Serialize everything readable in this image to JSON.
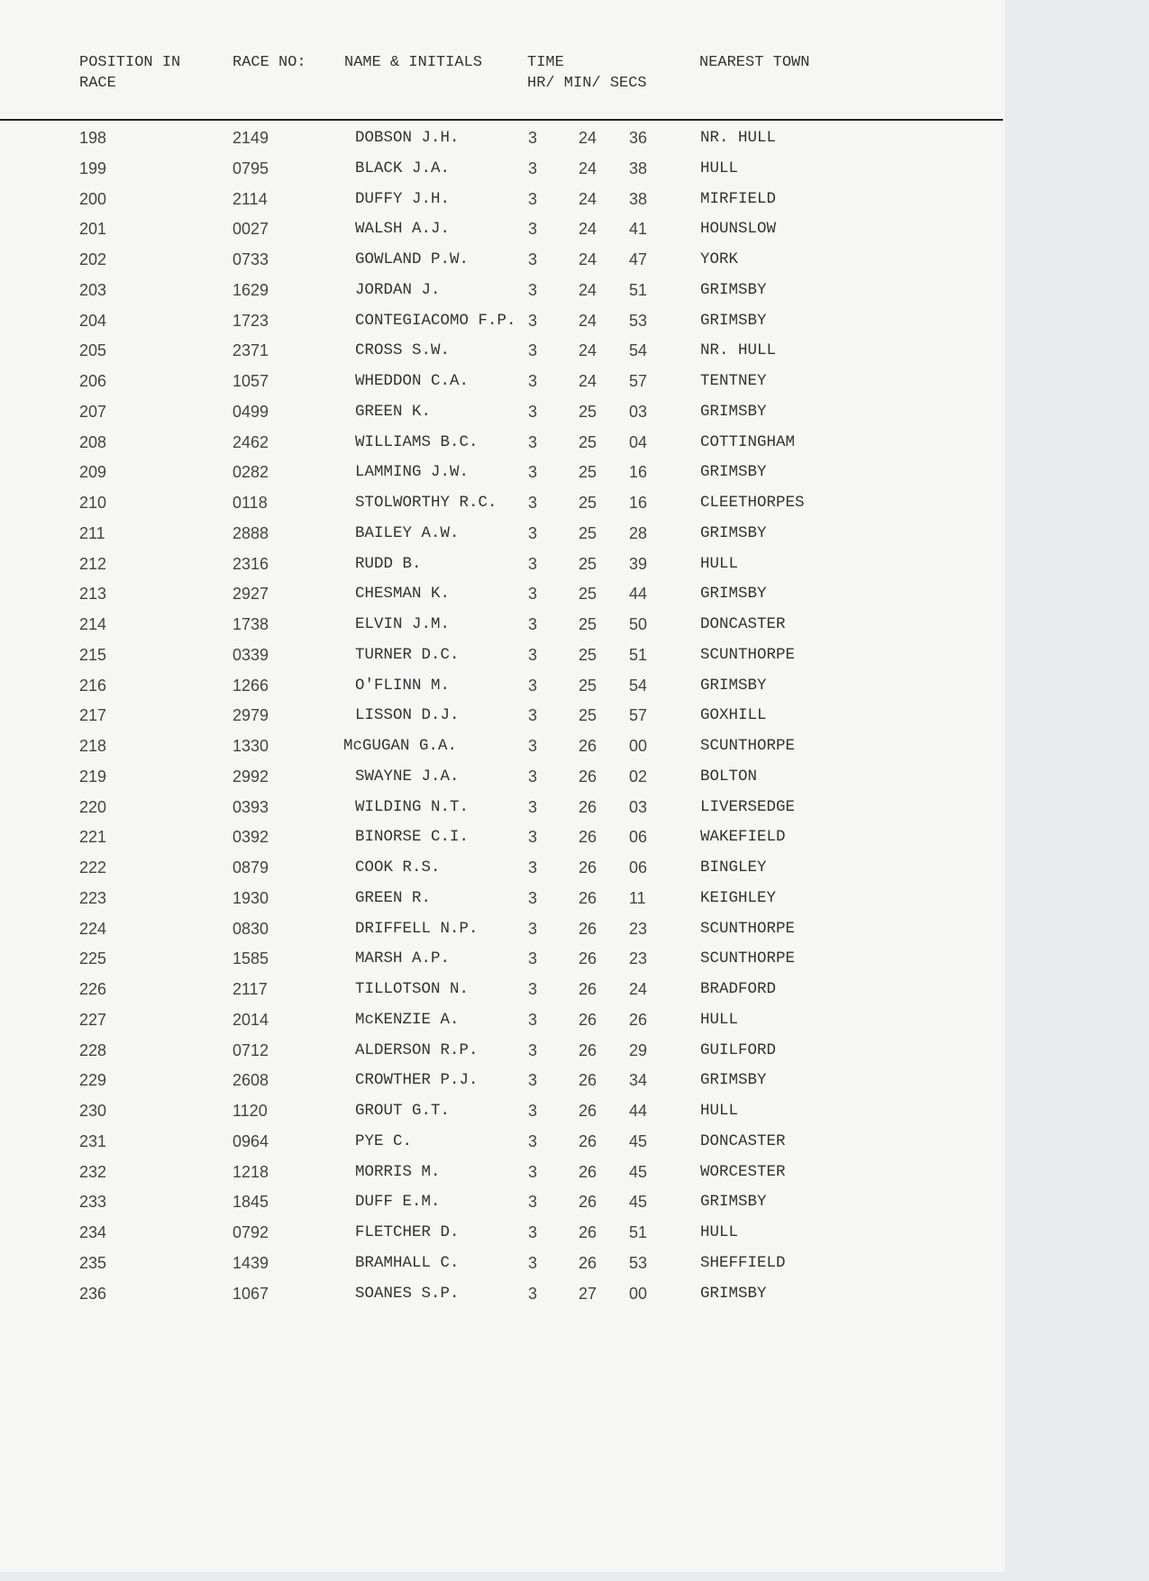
{
  "header": {
    "position": "POSITION IN\nRACE",
    "race_no": "RACE NO:",
    "name": "NAME & INITIALS",
    "time": "TIME\nHR/ MIN/ SECS",
    "town": "NEAREST TOWN"
  },
  "rows": [
    [
      "198",
      "2149",
      "DOBSON J.H.",
      "3",
      "24",
      "36",
      "NR. HULL"
    ],
    [
      "199",
      "0795",
      "BLACK J.A.",
      "3",
      "24",
      "38",
      "HULL"
    ],
    [
      "200",
      "2114",
      "DUFFY J.H.",
      "3",
      "24",
      "38",
      "MIRFIELD"
    ],
    [
      "201",
      "0027",
      "WALSH A.J.",
      "3",
      "24",
      "41",
      "HOUNSLOW"
    ],
    [
      "202",
      "0733",
      "GOWLAND P.W.",
      "3",
      "24",
      "47",
      "YORK"
    ],
    [
      "203",
      "1629",
      "JORDAN J.",
      "3",
      "24",
      "51",
      "GRIMSBY"
    ],
    [
      "204",
      "1723",
      "CONTEGIACOMO F.P.",
      "3",
      "24",
      "53",
      "GRIMSBY"
    ],
    [
      "205",
      "2371",
      "CROSS S.W.",
      "3",
      "24",
      "54",
      "NR. HULL"
    ],
    [
      "206",
      "1057",
      "WHEDDON C.A.",
      "3",
      "24",
      "57",
      "TENTNEY"
    ],
    [
      "207",
      "0499",
      "GREEN K.",
      "3",
      "25",
      "03",
      "GRIMSBY"
    ],
    [
      "208",
      "2462",
      "WILLIAMS B.C.",
      "3",
      "25",
      "04",
      "COTTINGHAM"
    ],
    [
      "209",
      "0282",
      "LAMMING J.W.",
      "3",
      "25",
      "16",
      "GRIMSBY"
    ],
    [
      "210",
      "0118",
      "STOLWORTHY R.C.",
      "3",
      "25",
      "16",
      "CLEETHORPES"
    ],
    [
      "211",
      "2888",
      "BAILEY A.W.",
      "3",
      "25",
      "28",
      "GRIMSBY"
    ],
    [
      "212",
      "2316",
      "RUDD B.",
      "3",
      "25",
      "39",
      "HULL"
    ],
    [
      "213",
      "2927",
      "CHESMAN K.",
      "3",
      "25",
      "44",
      "GRIMSBY"
    ],
    [
      "214",
      "1738",
      "ELVIN J.M.",
      "3",
      "25",
      "50",
      "DONCASTER"
    ],
    [
      "215",
      "0339",
      "TURNER D.C.",
      "3",
      "25",
      "51",
      "SCUNTHORPE"
    ],
    [
      "216",
      "1266",
      "O'FLINN M.",
      "3",
      "25",
      "54",
      "GRIMSBY"
    ],
    [
      "217",
      "2979",
      "LISSON D.J.",
      "3",
      "25",
      "57",
      "GOXHILL"
    ],
    [
      "218",
      "1330",
      "McGUGAN G.A.",
      "3",
      "26",
      "00",
      "SCUNTHORPE"
    ],
    [
      "219",
      "2992",
      "SWAYNE J.A.",
      "3",
      "26",
      "02",
      "BOLTON"
    ],
    [
      "220",
      "0393",
      "WILDING N.T.",
      "3",
      "26",
      "03",
      "LIVERSEDGE"
    ],
    [
      "221",
      "0392",
      "BINORSE C.I.",
      "3",
      "26",
      "06",
      "WAKEFIELD"
    ],
    [
      "222",
      "0879",
      "COOK R.S.",
      "3",
      "26",
      "06",
      "BINGLEY"
    ],
    [
      "223",
      "1930",
      "GREEN R.",
      "3",
      "26",
      "11",
      "KEIGHLEY"
    ],
    [
      "224",
      "0830",
      "DRIFFELL N.P.",
      "3",
      "26",
      "23",
      "SCUNTHORPE"
    ],
    [
      "225",
      "1585",
      "MARSH A.P.",
      "3",
      "26",
      "23",
      "SCUNTHORPE"
    ],
    [
      "226",
      "2117",
      "TILLOTSON N.",
      "3",
      "26",
      "24",
      "BRADFORD"
    ],
    [
      "227",
      "2014",
      "McKENZIE A.",
      "3",
      "26",
      "26",
      "HULL"
    ],
    [
      "228",
      "0712",
      "ALDERSON R.P.",
      "3",
      "26",
      "29",
      "GUILFORD"
    ],
    [
      "229",
      "2608",
      "CROWTHER P.J.",
      "3",
      "26",
      "34",
      "GRIMSBY"
    ],
    [
      "230",
      "1120",
      "GROUT G.T.",
      "3",
      "26",
      "44",
      "HULL"
    ],
    [
      "231",
      "0964",
      "PYE C.",
      "3",
      "26",
      "45",
      "DONCASTER"
    ],
    [
      "232",
      "1218",
      "MORRIS M.",
      "3",
      "26",
      "45",
      "WORCESTER"
    ],
    [
      "233",
      "1845",
      "DUFF E.M.",
      "3",
      "26",
      "45",
      "GRIMSBY"
    ],
    [
      "234",
      "0792",
      "FLETCHER D.",
      "3",
      "26",
      "51",
      "HULL"
    ],
    [
      "235",
      "1439",
      "BRAMHALL C.",
      "3",
      "26",
      "53",
      "SHEFFIELD"
    ],
    [
      "236",
      "1067",
      "SOANES S.P.",
      "3",
      "27",
      "00",
      "GRIMSBY"
    ]
  ]
}
